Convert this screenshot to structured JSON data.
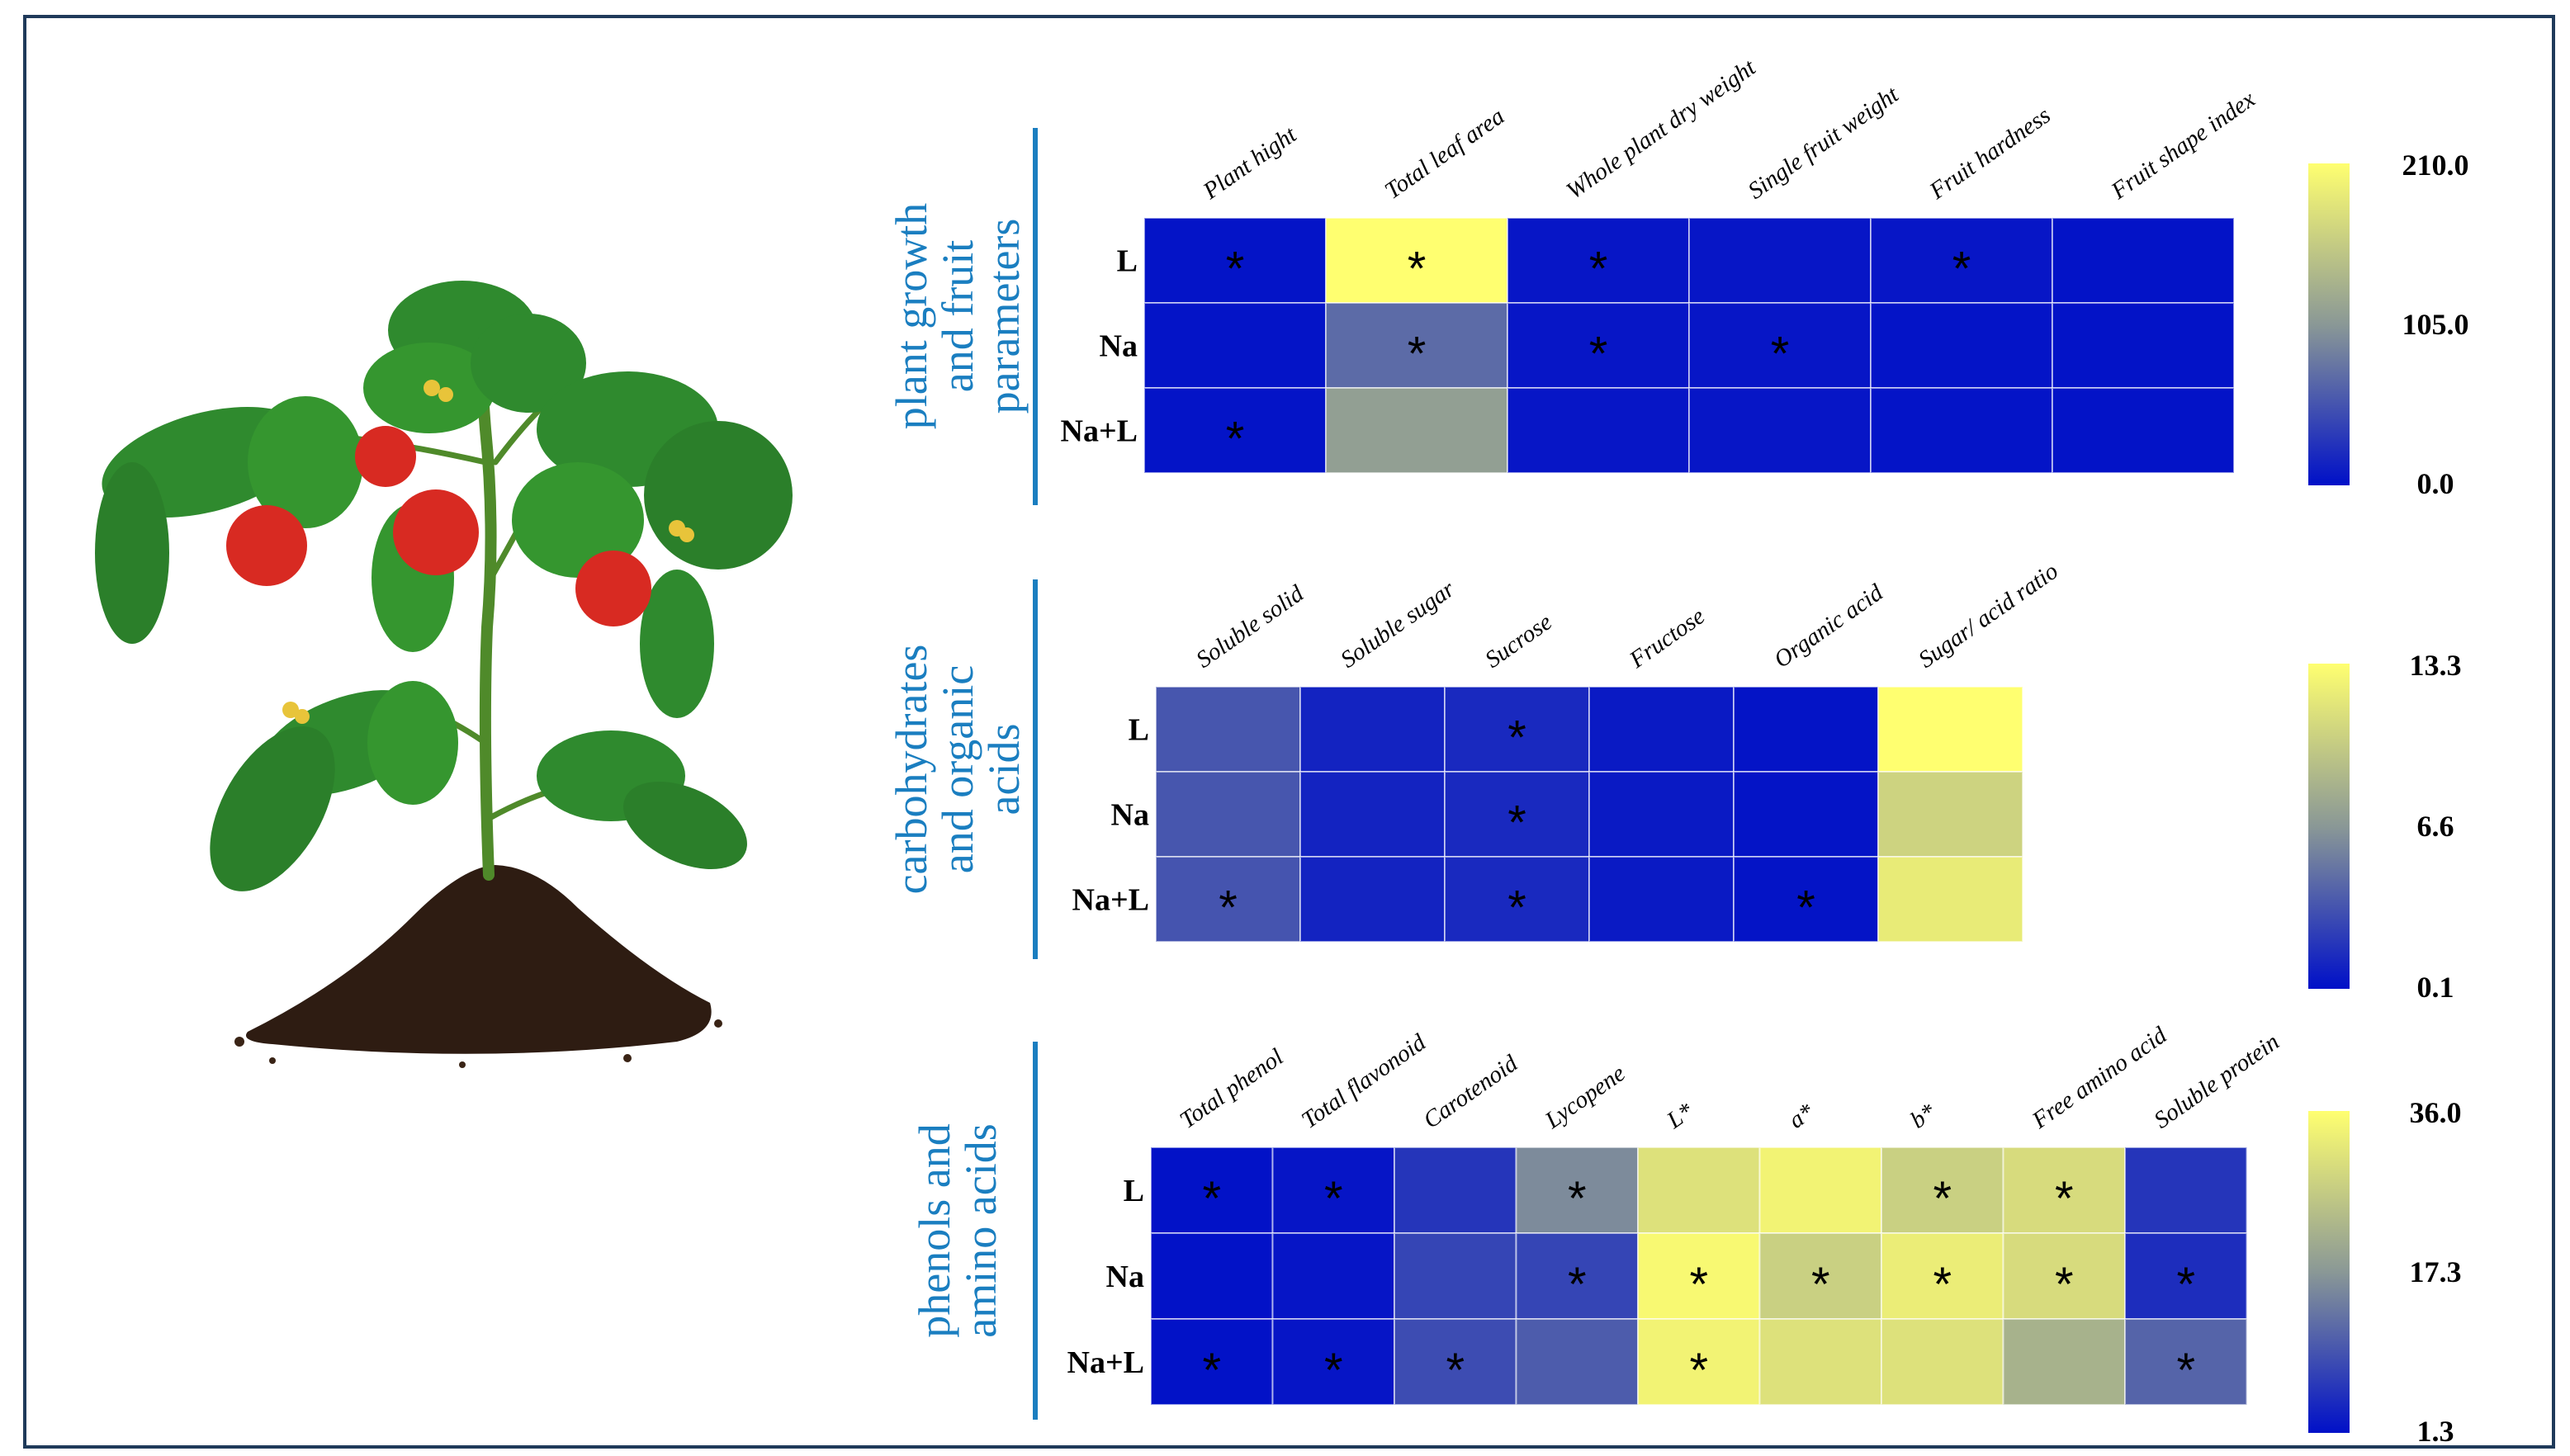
{
  "chart_data": [
    {
      "type": "heatmap",
      "group_label": [
        "plant growth",
        "and fruit",
        "parameters"
      ],
      "rows": [
        "L",
        "Na",
        "Na+L"
      ],
      "columns": [
        "Plant hight",
        "Total leaf area",
        "Whole plant dry weight",
        "Single fruit weight",
        "Fruit hardness",
        "Fruit shape index"
      ],
      "values": [
        [
          3,
          210,
          5,
          5,
          5,
          2
        ],
        [
          3,
          70,
          5,
          5,
          3,
          2
        ],
        [
          3,
          112,
          5,
          5,
          3,
          2
        ]
      ],
      "significant": [
        [
          true,
          true,
          true,
          false,
          true,
          false
        ],
        [
          false,
          true,
          true,
          true,
          false,
          false
        ],
        [
          true,
          false,
          false,
          false,
          false,
          false
        ]
      ],
      "significance_mark": "*",
      "colorbar": {
        "min": 0.0,
        "max": 210.0,
        "tick_labels": [
          "210.0",
          "105.0",
          "0.0"
        ]
      }
    },
    {
      "type": "heatmap",
      "group_label": [
        "carbohydrates",
        "and organic",
        "acids"
      ],
      "rows": [
        "L",
        "Na",
        "Na+L"
      ],
      "columns": [
        "Soluble solid",
        "Soluble sugar",
        "Sucrose",
        "Fructose",
        "Organic acid",
        "Sugar/ acid ratio"
      ],
      "values": [
        [
          3.5,
          1.0,
          1.3,
          0.6,
          0.3,
          13.3
        ],
        [
          3.5,
          1.0,
          1.3,
          0.6,
          0.3,
          10.5
        ],
        [
          3.4,
          1.0,
          1.3,
          0.6,
          0.3,
          12.0
        ]
      ],
      "significant": [
        [
          false,
          false,
          true,
          false,
          false,
          false
        ],
        [
          false,
          false,
          true,
          false,
          false,
          false
        ],
        [
          true,
          false,
          true,
          false,
          true,
          false
        ]
      ],
      "significance_mark": "*",
      "colorbar": {
        "min": 0.1,
        "max": 13.3,
        "tick_labels": [
          "13.3",
          "6.6",
          "0.1"
        ]
      }
    },
    {
      "type": "heatmap",
      "group_label": [
        "phenols and",
        "amino acids"
      ],
      "rows": [
        "L",
        "Na",
        "Na+L"
      ],
      "columns": [
        "Total phenol",
        "Total flavonoid",
        "Carotenoid",
        "Lycopene",
        "L*",
        "a*",
        "b*",
        "Free amino acid",
        "Soluble protein"
      ],
      "values": [
        [
          1.5,
          2.0,
          6.0,
          17.0,
          31.0,
          34.0,
          28.0,
          30.0,
          6.0
        ],
        [
          1.5,
          2.0,
          8.0,
          8.0,
          35.0,
          28.0,
          33.0,
          30.0,
          5.0
        ],
        [
          1.5,
          2.0,
          9.0,
          11.0,
          34.0,
          31.0,
          31.0,
          23.0,
          12.0
        ]
      ],
      "significant": [
        [
          true,
          true,
          false,
          true,
          false,
          false,
          true,
          true,
          false
        ],
        [
          false,
          false,
          false,
          true,
          true,
          true,
          true,
          true,
          true
        ],
        [
          true,
          true,
          true,
          false,
          true,
          false,
          false,
          false,
          true
        ]
      ],
      "significance_mark": "*",
      "colorbar": {
        "min": 1.3,
        "max": 36.0,
        "tick_labels": [
          "36.0",
          "17.3",
          "1.3"
        ]
      }
    }
  ],
  "colors": {
    "low": "#0010c8",
    "mid": "#8a9896",
    "high": "#ffff70",
    "group_label": "#1a7ec0",
    "frame": "#1f3a5a"
  },
  "illustration": "tomato-plant"
}
